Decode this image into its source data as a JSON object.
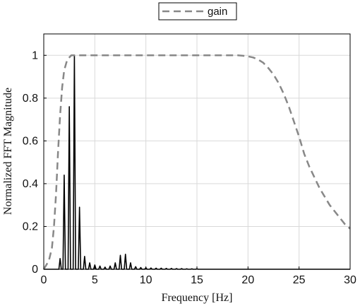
{
  "chart_data": {
    "type": "line",
    "xlabel": "Frequency [Hz]",
    "ylabel": "Normalized FFT Magnitude",
    "xlim": [
      0,
      30
    ],
    "ylim": [
      0,
      1.1
    ],
    "xticks": [
      0,
      5,
      10,
      15,
      20,
      25,
      30
    ],
    "yticks": [
      0,
      0.2,
      0.4,
      0.6,
      0.8,
      1
    ],
    "ytick_labels": [
      "0",
      "0.2",
      "0.4",
      "0.6",
      "0.8",
      "1"
    ],
    "grid": true,
    "legend_position": "top-center",
    "series": [
      {
        "name": "gain",
        "style": "dashed",
        "color": "#888888",
        "x": [
          0,
          0.5,
          0.8,
          1.0,
          1.2,
          1.4,
          1.6,
          1.8,
          2.0,
          2.3,
          2.7,
          3.0,
          5,
          10,
          15,
          18,
          19,
          19.5,
          20,
          20.5,
          21,
          21.5,
          22,
          22.5,
          23,
          23.5,
          24,
          24.5,
          25,
          25.5,
          26,
          26.5,
          27,
          27.5,
          28,
          28.5,
          29,
          29.5,
          30
        ],
        "y": [
          0,
          0.04,
          0.1,
          0.2,
          0.35,
          0.55,
          0.72,
          0.85,
          0.93,
          0.98,
          1.0,
          1.0,
          1.0,
          1.0,
          1.0,
          1.0,
          1.0,
          0.998,
          0.995,
          0.99,
          0.98,
          0.965,
          0.94,
          0.91,
          0.87,
          0.82,
          0.76,
          0.69,
          0.62,
          0.54,
          0.48,
          0.43,
          0.38,
          0.34,
          0.3,
          0.27,
          0.24,
          0.21,
          0.19
        ]
      },
      {
        "name": "",
        "style": "solid",
        "color": "#000000",
        "peaks": [
          {
            "x": 1.6,
            "y": 0.05
          },
          {
            "x": 2.0,
            "y": 0.44
          },
          {
            "x": 2.5,
            "y": 0.76
          },
          {
            "x": 3.0,
            "y": 1.0
          },
          {
            "x": 3.5,
            "y": 0.29
          },
          {
            "x": 4.0,
            "y": 0.06
          },
          {
            "x": 4.5,
            "y": 0.03
          },
          {
            "x": 5.0,
            "y": 0.02
          },
          {
            "x": 5.5,
            "y": 0.015
          },
          {
            "x": 6.0,
            "y": 0.01
          },
          {
            "x": 6.5,
            "y": 0.015
          },
          {
            "x": 7.0,
            "y": 0.03
          },
          {
            "x": 7.5,
            "y": 0.065
          },
          {
            "x": 8.0,
            "y": 0.07
          },
          {
            "x": 8.5,
            "y": 0.03
          },
          {
            "x": 9.0,
            "y": 0.012
          },
          {
            "x": 9.5,
            "y": 0.008
          },
          {
            "x": 10.0,
            "y": 0.007
          },
          {
            "x": 10.5,
            "y": 0.006
          },
          {
            "x": 11.0,
            "y": 0.005
          },
          {
            "x": 11.5,
            "y": 0.005
          },
          {
            "x": 12.0,
            "y": 0.004
          },
          {
            "x": 12.5,
            "y": 0.004
          },
          {
            "x": 13.0,
            "y": 0.003
          },
          {
            "x": 13.5,
            "y": 0.003
          },
          {
            "x": 14.0,
            "y": 0.002
          },
          {
            "x": 14.5,
            "y": 0.002
          },
          {
            "x": 15.0,
            "y": 0.002
          }
        ]
      }
    ]
  }
}
